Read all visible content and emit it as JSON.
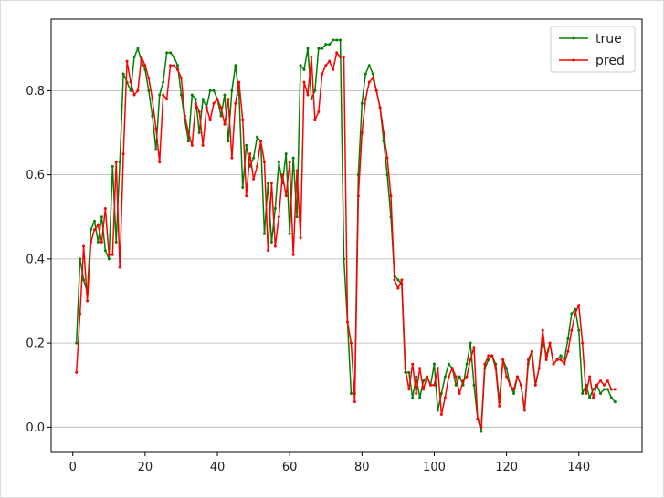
{
  "chart_data": {
    "type": "line",
    "title": "",
    "xlabel": "",
    "ylabel": "",
    "xlim": [
      -6,
      157.5
    ],
    "ylim": [
      -0.06,
      0.97
    ],
    "grid": "horizontal",
    "legend_position": "top-right",
    "x_ticks": [
      0,
      20,
      40,
      60,
      80,
      100,
      120,
      140
    ],
    "x_tick_labels": [
      "0",
      "20",
      "40",
      "60",
      "80",
      "100",
      "120",
      "140"
    ],
    "y_ticks": [
      0.0,
      0.2,
      0.4,
      0.6,
      0.8
    ],
    "y_tick_labels": [
      "0.0",
      "0.2",
      "0.4",
      "0.6",
      "0.8"
    ],
    "series": [
      {
        "name": "true",
        "color": "#008000",
        "points": [
          [
            1,
            0.2
          ],
          [
            2,
            0.4
          ],
          [
            3,
            0.35
          ],
          [
            4,
            0.32
          ],
          [
            5,
            0.47
          ],
          [
            6,
            0.49
          ],
          [
            7,
            0.44
          ],
          [
            8,
            0.5
          ],
          [
            9,
            0.42
          ],
          [
            10,
            0.4
          ],
          [
            11,
            0.62
          ],
          [
            12,
            0.44
          ],
          [
            13,
            0.63
          ],
          [
            14,
            0.84
          ],
          [
            15,
            0.82
          ],
          [
            16,
            0.8
          ],
          [
            17,
            0.88
          ],
          [
            18,
            0.9
          ],
          [
            19,
            0.87
          ],
          [
            20,
            0.85
          ],
          [
            21,
            0.8
          ],
          [
            22,
            0.74
          ],
          [
            23,
            0.66
          ],
          [
            24,
            0.79
          ],
          [
            25,
            0.82
          ],
          [
            26,
            0.89
          ],
          [
            27,
            0.89
          ],
          [
            28,
            0.88
          ],
          [
            29,
            0.86
          ],
          [
            30,
            0.79
          ],
          [
            31,
            0.73
          ],
          [
            32,
            0.68
          ],
          [
            33,
            0.79
          ],
          [
            34,
            0.78
          ],
          [
            35,
            0.7
          ],
          [
            36,
            0.78
          ],
          [
            37,
            0.76
          ],
          [
            38,
            0.8
          ],
          [
            39,
            0.8
          ],
          [
            40,
            0.78
          ],
          [
            41,
            0.74
          ],
          [
            42,
            0.79
          ],
          [
            43,
            0.68
          ],
          [
            44,
            0.8
          ],
          [
            45,
            0.86
          ],
          [
            46,
            0.79
          ],
          [
            47,
            0.57
          ],
          [
            48,
            0.67
          ],
          [
            49,
            0.62
          ],
          [
            50,
            0.64
          ],
          [
            51,
            0.69
          ],
          [
            52,
            0.68
          ],
          [
            53,
            0.46
          ],
          [
            54,
            0.58
          ],
          [
            55,
            0.44
          ],
          [
            56,
            0.52
          ],
          [
            57,
            0.63
          ],
          [
            58,
            0.58
          ],
          [
            59,
            0.65
          ],
          [
            60,
            0.46
          ],
          [
            61,
            0.64
          ],
          [
            62,
            0.5
          ],
          [
            63,
            0.86
          ],
          [
            64,
            0.85
          ],
          [
            65,
            0.9
          ],
          [
            66,
            0.78
          ],
          [
            67,
            0.8
          ],
          [
            68,
            0.9
          ],
          [
            69,
            0.9
          ],
          [
            70,
            0.91
          ],
          [
            71,
            0.91
          ],
          [
            72,
            0.92
          ],
          [
            73,
            0.92
          ],
          [
            74,
            0.92
          ],
          [
            75,
            0.4
          ],
          [
            76,
            0.25
          ],
          [
            77,
            0.08
          ],
          [
            78,
            0.08
          ],
          [
            79,
            0.6
          ],
          [
            80,
            0.77
          ],
          [
            81,
            0.84
          ],
          [
            82,
            0.86
          ],
          [
            83,
            0.84
          ],
          [
            84,
            0.8
          ],
          [
            85,
            0.76
          ],
          [
            86,
            0.68
          ],
          [
            87,
            0.6
          ],
          [
            88,
            0.5
          ],
          [
            89,
            0.36
          ],
          [
            90,
            0.35
          ],
          [
            91,
            0.34
          ],
          [
            92,
            0.13
          ],
          [
            93,
            0.13
          ],
          [
            94,
            0.07
          ],
          [
            95,
            0.12
          ],
          [
            96,
            0.07
          ],
          [
            97,
            0.11
          ],
          [
            98,
            0.12
          ],
          [
            99,
            0.1
          ],
          [
            100,
            0.15
          ],
          [
            101,
            0.04
          ],
          [
            102,
            0.08
          ],
          [
            103,
            0.12
          ],
          [
            104,
            0.15
          ],
          [
            105,
            0.14
          ],
          [
            106,
            0.1
          ],
          [
            107,
            0.12
          ],
          [
            108,
            0.1
          ],
          [
            109,
            0.15
          ],
          [
            110,
            0.2
          ],
          [
            111,
            0.1
          ],
          [
            112,
            0.02
          ],
          [
            113,
            -0.01
          ],
          [
            114,
            0.14
          ],
          [
            115,
            0.16
          ],
          [
            116,
            0.17
          ],
          [
            117,
            0.15
          ],
          [
            118,
            0.06
          ],
          [
            119,
            0.16
          ],
          [
            120,
            0.14
          ],
          [
            121,
            0.1
          ],
          [
            122,
            0.08
          ],
          [
            123,
            0.12
          ],
          [
            124,
            0.1
          ],
          [
            125,
            0.04
          ],
          [
            126,
            0.15
          ],
          [
            127,
            0.18
          ],
          [
            128,
            0.1
          ],
          [
            129,
            0.14
          ],
          [
            130,
            0.21
          ],
          [
            131,
            0.17
          ],
          [
            132,
            0.2
          ],
          [
            133,
            0.15
          ],
          [
            134,
            0.16
          ],
          [
            135,
            0.17
          ],
          [
            136,
            0.16
          ],
          [
            137,
            0.21
          ],
          [
            138,
            0.27
          ],
          [
            139,
            0.28
          ],
          [
            140,
            0.23
          ],
          [
            141,
            0.08
          ],
          [
            142,
            0.1
          ],
          [
            143,
            0.07
          ],
          [
            144,
            0.09
          ],
          [
            145,
            0.1
          ],
          [
            146,
            0.08
          ],
          [
            147,
            0.09
          ],
          [
            148,
            0.09
          ],
          [
            149,
            0.07
          ],
          [
            150,
            0.06
          ]
        ]
      },
      {
        "name": "pred",
        "color": "#ff0000",
        "points": [
          [
            1,
            0.13
          ],
          [
            2,
            0.27
          ],
          [
            3,
            0.43
          ],
          [
            4,
            0.3
          ],
          [
            5,
            0.44
          ],
          [
            6,
            0.47
          ],
          [
            7,
            0.48
          ],
          [
            8,
            0.44
          ],
          [
            9,
            0.52
          ],
          [
            10,
            0.41
          ],
          [
            11,
            0.41
          ],
          [
            12,
            0.63
          ],
          [
            13,
            0.38
          ],
          [
            14,
            0.65
          ],
          [
            15,
            0.87
          ],
          [
            16,
            0.82
          ],
          [
            17,
            0.79
          ],
          [
            18,
            0.8
          ],
          [
            19,
            0.88
          ],
          [
            20,
            0.86
          ],
          [
            21,
            0.83
          ],
          [
            22,
            0.78
          ],
          [
            23,
            0.71
          ],
          [
            24,
            0.63
          ],
          [
            25,
            0.79
          ],
          [
            26,
            0.78
          ],
          [
            27,
            0.86
          ],
          [
            28,
            0.86
          ],
          [
            29,
            0.85
          ],
          [
            30,
            0.83
          ],
          [
            31,
            0.74
          ],
          [
            32,
            0.7
          ],
          [
            33,
            0.67
          ],
          [
            34,
            0.77
          ],
          [
            35,
            0.75
          ],
          [
            36,
            0.67
          ],
          [
            37,
            0.76
          ],
          [
            38,
            0.73
          ],
          [
            39,
            0.77
          ],
          [
            40,
            0.78
          ],
          [
            41,
            0.76
          ],
          [
            42,
            0.72
          ],
          [
            43,
            0.78
          ],
          [
            44,
            0.64
          ],
          [
            45,
            0.77
          ],
          [
            46,
            0.82
          ],
          [
            47,
            0.73
          ],
          [
            48,
            0.55
          ],
          [
            49,
            0.65
          ],
          [
            50,
            0.59
          ],
          [
            51,
            0.62
          ],
          [
            52,
            0.68
          ],
          [
            53,
            0.63
          ],
          [
            54,
            0.42
          ],
          [
            55,
            0.58
          ],
          [
            56,
            0.43
          ],
          [
            57,
            0.5
          ],
          [
            58,
            0.6
          ],
          [
            59,
            0.55
          ],
          [
            60,
            0.63
          ],
          [
            61,
            0.41
          ],
          [
            62,
            0.61
          ],
          [
            63,
            0.45
          ],
          [
            64,
            0.82
          ],
          [
            65,
            0.79
          ],
          [
            66,
            0.88
          ],
          [
            67,
            0.73
          ],
          [
            68,
            0.75
          ],
          [
            69,
            0.84
          ],
          [
            70,
            0.86
          ],
          [
            71,
            0.87
          ],
          [
            72,
            0.85
          ],
          [
            73,
            0.89
          ],
          [
            74,
            0.88
          ],
          [
            75,
            0.88
          ],
          [
            76,
            0.25
          ],
          [
            77,
            0.2
          ],
          [
            78,
            0.06
          ],
          [
            79,
            0.55
          ],
          [
            80,
            0.7
          ],
          [
            81,
            0.78
          ],
          [
            82,
            0.82
          ],
          [
            83,
            0.83
          ],
          [
            84,
            0.8
          ],
          [
            85,
            0.76
          ],
          [
            86,
            0.7
          ],
          [
            87,
            0.64
          ],
          [
            88,
            0.55
          ],
          [
            89,
            0.35
          ],
          [
            90,
            0.33
          ],
          [
            91,
            0.35
          ],
          [
            92,
            0.14
          ],
          [
            93,
            0.09
          ],
          [
            94,
            0.15
          ],
          [
            95,
            0.08
          ],
          [
            96,
            0.14
          ],
          [
            97,
            0.09
          ],
          [
            98,
            0.12
          ],
          [
            99,
            0.1
          ],
          [
            100,
            0.1
          ],
          [
            101,
            0.14
          ],
          [
            102,
            0.03
          ],
          [
            103,
            0.07
          ],
          [
            104,
            0.12
          ],
          [
            105,
            0.14
          ],
          [
            106,
            0.12
          ],
          [
            107,
            0.08
          ],
          [
            108,
            0.11
          ],
          [
            109,
            0.12
          ],
          [
            110,
            0.16
          ],
          [
            111,
            0.19
          ],
          [
            112,
            0.02
          ],
          [
            113,
            0.0
          ],
          [
            114,
            0.15
          ],
          [
            115,
            0.17
          ],
          [
            116,
            0.17
          ],
          [
            117,
            0.14
          ],
          [
            118,
            0.05
          ],
          [
            119,
            0.16
          ],
          [
            120,
            0.12
          ],
          [
            121,
            0.1
          ],
          [
            122,
            0.09
          ],
          [
            123,
            0.12
          ],
          [
            124,
            0.1
          ],
          [
            125,
            0.04
          ],
          [
            126,
            0.16
          ],
          [
            127,
            0.18
          ],
          [
            128,
            0.1
          ],
          [
            129,
            0.14
          ],
          [
            130,
            0.23
          ],
          [
            131,
            0.16
          ],
          [
            132,
            0.2
          ],
          [
            133,
            0.15
          ],
          [
            134,
            0.16
          ],
          [
            135,
            0.16
          ],
          [
            136,
            0.15
          ],
          [
            137,
            0.18
          ],
          [
            138,
            0.23
          ],
          [
            139,
            0.27
          ],
          [
            140,
            0.29
          ],
          [
            141,
            0.2
          ],
          [
            142,
            0.08
          ],
          [
            143,
            0.12
          ],
          [
            144,
            0.07
          ],
          [
            145,
            0.1
          ],
          [
            146,
            0.11
          ],
          [
            147,
            0.1
          ],
          [
            148,
            0.11
          ],
          [
            149,
            0.09
          ],
          [
            150,
            0.09
          ]
        ]
      }
    ]
  }
}
